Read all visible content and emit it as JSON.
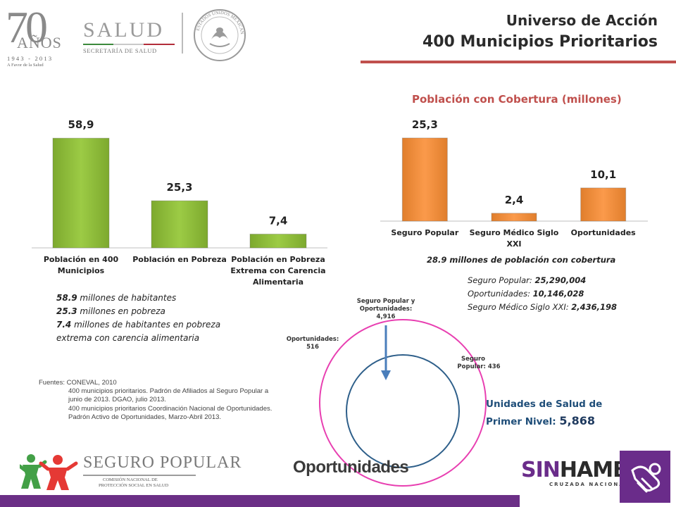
{
  "header": {
    "title_line1": "Universo de Acción",
    "title_line2": "400 Municipios Prioritarios",
    "logo70_number": "70",
    "logo70_anos": "AÑOS",
    "logo70_years": "1943 - 2013",
    "logo70_motto": "A Favor de la Salud",
    "salud_word": "SALUD",
    "salud_sub": "SECRETARÍA DE SALUD",
    "seal_text": "ESTADOS UNIDOS MEXICANOS"
  },
  "chart_data": [
    {
      "type": "bar",
      "categories": [
        "Población en 400 Municipios",
        "Población en Pobreza",
        "Población en Pobreza Extrema con Carencia Alimentaria"
      ],
      "values": [
        58.9,
        25.3,
        7.4
      ],
      "data_labels": [
        "58,9",
        "25,3",
        "7,4"
      ],
      "title": "",
      "ylim": [
        0,
        62
      ],
      "color": "#92c13d"
    },
    {
      "type": "bar",
      "categories": [
        "Seguro Popular",
        "Seguro Médico Siglo XXI",
        "Oportunidades"
      ],
      "values": [
        25.3,
        2.4,
        10.1
      ],
      "data_labels": [
        "25,3",
        "2,4",
        "10,1"
      ],
      "title": "Población con Cobertura (millones)",
      "ylim": [
        0,
        27
      ],
      "color": "#f79646"
    }
  ],
  "left_notes": [
    {
      "bold": "58.9",
      "text": " millones de habitantes"
    },
    {
      "bold": "25.3",
      "text": " millones en pobreza"
    },
    {
      "bold": "7.4",
      "text": " millones de habitantes en pobreza extrema con carencia alimentaria"
    }
  ],
  "coverage": {
    "note": "28.9 millones de población con cobertura",
    "details": [
      {
        "label": "Seguro Popular: ",
        "value": "25,290,004"
      },
      {
        "label": "Oportunidades: ",
        "value": "10,146,028"
      },
      {
        "label": "Seguro Médico Siglo XXI: ",
        "value": "2,436,198"
      }
    ]
  },
  "sources": {
    "heading": "Fuentes: CONEVAL, 2010",
    "line1": "400 municipios prioritarios. Padrón de Afiliados al Seguro Popular a junio de 2013. DGAO, julio 2013.",
    "line2": "400 municipios prioritarios Coordinación Nacional de Oportunidades. Padrón Activo de Oportunidades, Marzo-Abril 2013."
  },
  "venn": {
    "both_label_1": "Seguro Popular y",
    "both_label_2": "Oportunidades:",
    "both_value": "4,916",
    "oport_label": "Oportunidades:",
    "oport_value": "516",
    "sp_label_1": "Seguro",
    "sp_label_2": "Popular: 436",
    "oport_color": "#e83fb1",
    "sp_color": "#2e5f8a",
    "arrow_color": "#4a7ebb"
  },
  "unidades": {
    "line1": "Unidades de Salud de",
    "line2": "Primer Nivel: ",
    "count": "5,868"
  },
  "footer": {
    "sp_word": "SEGURO POPULAR",
    "sp_sub1": "COMISIÓN NACIONAL DE",
    "sp_sub2": "PROTECCIÓN SOCIAL EN SALUD",
    "oportunidades": "Oportunidades",
    "sin": "SIN",
    "hambre": "HAMBRE",
    "cruzada": "CRUZADA NACIONAL"
  },
  "colors": {
    "accent_red": "#c0504d",
    "footer_purple": "#6b2f86",
    "green_bar": "#92c13d",
    "orange_bar": "#f79646"
  }
}
